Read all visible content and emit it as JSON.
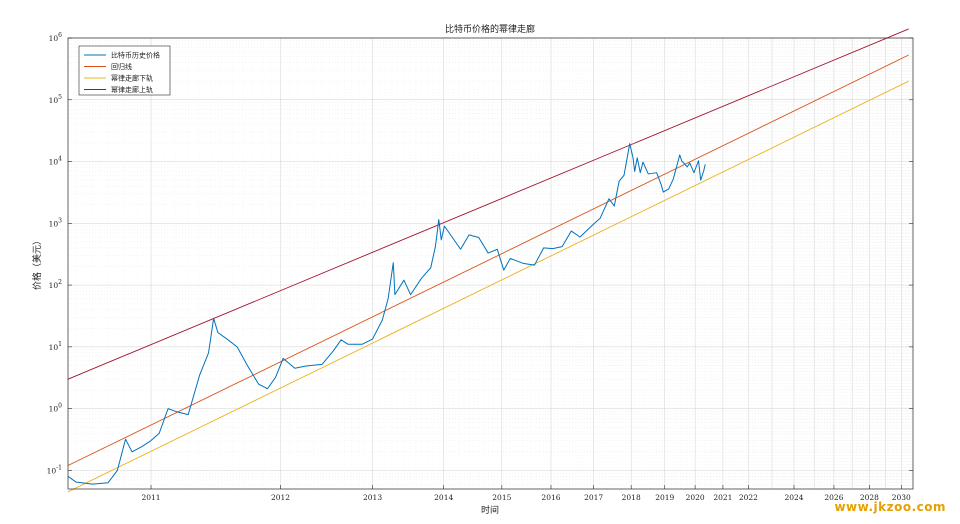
{
  "chart_data": {
    "type": "line",
    "title": "比特币价格的幂律走廊",
    "xlabel": "时间",
    "ylabel": "价格（美元）",
    "yscale": "log",
    "xscale": "log-time",
    "ylim": [
      0.05,
      1000000
    ],
    "y_ticks": [
      {
        "value": 0.1,
        "base": "10",
        "exp": "-1"
      },
      {
        "value": 1,
        "base": "10",
        "exp": "0"
      },
      {
        "value": 10,
        "base": "10",
        "exp": "1"
      },
      {
        "value": 100,
        "base": "10",
        "exp": "2"
      },
      {
        "value": 1000,
        "base": "10",
        "exp": "3"
      },
      {
        "value": 10000,
        "base": "10",
        "exp": "4"
      },
      {
        "value": 100000,
        "base": "10",
        "exp": "5"
      },
      {
        "value": 1000000,
        "base": "10",
        "exp": "6"
      }
    ],
    "x_ticks": [
      "2011",
      "2012",
      "2013",
      "2014",
      "2015",
      "2016",
      "2017",
      "2018",
      "2019",
      "2020",
      "2021",
      "2022",
      "2024",
      "2026",
      "2028",
      "2030"
    ],
    "grid": true,
    "legend_position": "top-left",
    "series": [
      {
        "name": "比特币历史价格",
        "color": "#0072bd",
        "points": [
          [
            "2010-07-18",
            0.08
          ],
          [
            "2010-08-01",
            0.065
          ],
          [
            "2010-09-01",
            0.06
          ],
          [
            "2010-10-01",
            0.063
          ],
          [
            "2010-10-20",
            0.1
          ],
          [
            "2010-11-06",
            0.32
          ],
          [
            "2010-11-20",
            0.2
          ],
          [
            "2010-12-10",
            0.24
          ],
          [
            "2010-12-31",
            0.3
          ],
          [
            "2011-01-20",
            0.4
          ],
          [
            "2011-02-10",
            1.0
          ],
          [
            "2011-03-01",
            0.9
          ],
          [
            "2011-04-01",
            0.8
          ],
          [
            "2011-05-01",
            3.5
          ],
          [
            "2011-05-25",
            8
          ],
          [
            "2011-06-08",
            29
          ],
          [
            "2011-06-20",
            17
          ],
          [
            "2011-07-15",
            13.5
          ],
          [
            "2011-08-15",
            10
          ],
          [
            "2011-09-15",
            5
          ],
          [
            "2011-10-20",
            2.5
          ],
          [
            "2011-11-18",
            2.1
          ],
          [
            "2011-12-15",
            3.2
          ],
          [
            "2012-01-10",
            6.5
          ],
          [
            "2012-02-20",
            4.5
          ],
          [
            "2012-04-01",
            4.9
          ],
          [
            "2012-06-01",
            5.2
          ],
          [
            "2012-07-15",
            8.5
          ],
          [
            "2012-08-17",
            13
          ],
          [
            "2012-09-15",
            11
          ],
          [
            "2012-11-15",
            11
          ],
          [
            "2013-01-01",
            13.4
          ],
          [
            "2013-02-15",
            27
          ],
          [
            "2013-03-15",
            60
          ],
          [
            "2013-04-09",
            230
          ],
          [
            "2013-04-17",
            70
          ],
          [
            "2013-06-01",
            120
          ],
          [
            "2013-07-05",
            70
          ],
          [
            "2013-09-01",
            130
          ],
          [
            "2013-10-20",
            190
          ],
          [
            "2013-11-15",
            420
          ],
          [
            "2013-12-04",
            1150
          ],
          [
            "2013-12-18",
            540
          ],
          [
            "2014-01-05",
            900
          ],
          [
            "2014-02-15",
            620
          ],
          [
            "2014-04-10",
            380
          ],
          [
            "2014-06-01",
            650
          ],
          [
            "2014-08-01",
            590
          ],
          [
            "2014-10-01",
            330
          ],
          [
            "2014-12-01",
            380
          ],
          [
            "2015-01-14",
            175
          ],
          [
            "2015-03-01",
            270
          ],
          [
            "2015-06-01",
            225
          ],
          [
            "2015-08-25",
            210
          ],
          [
            "2015-11-04",
            400
          ],
          [
            "2016-01-15",
            390
          ],
          [
            "2016-04-01",
            420
          ],
          [
            "2016-06-17",
            750
          ],
          [
            "2016-09-01",
            600
          ],
          [
            "2016-12-31",
            970
          ],
          [
            "2017-03-01",
            1200
          ],
          [
            "2017-05-25",
            2500
          ],
          [
            "2017-07-15",
            1900
          ],
          [
            "2017-09-01",
            4800
          ],
          [
            "2017-10-20",
            6000
          ],
          [
            "2017-12-17",
            19500
          ],
          [
            "2018-01-20",
            11500
          ],
          [
            "2018-02-06",
            6900
          ],
          [
            "2018-03-05",
            11500
          ],
          [
            "2018-04-06",
            6600
          ],
          [
            "2018-05-05",
            9800
          ],
          [
            "2018-07-01",
            6300
          ],
          [
            "2018-10-01",
            6600
          ],
          [
            "2018-11-20",
            4300
          ],
          [
            "2018-12-15",
            3200
          ],
          [
            "2019-02-15",
            3600
          ],
          [
            "2019-04-10",
            5200
          ],
          [
            "2019-06-26",
            12800
          ],
          [
            "2019-07-20",
            10200
          ],
          [
            "2019-09-25",
            8200
          ],
          [
            "2019-10-26",
            9500
          ],
          [
            "2019-12-17",
            6600
          ],
          [
            "2020-02-13",
            10300
          ],
          [
            "2020-03-12",
            5000
          ],
          [
            "2020-04-20",
            7100
          ],
          [
            "2020-05-10",
            9000
          ]
        ]
      },
      {
        "name": "回归线",
        "color": "#d95319",
        "line": [
          [
            "2010-07-18",
            0.12
          ],
          [
            "2030-06-30",
            530000
          ]
        ]
      },
      {
        "name": "幂律走廊下轨",
        "color": "#edb120",
        "line": [
          [
            "2010-07-18",
            0.045
          ],
          [
            "2030-06-30",
            200000
          ]
        ]
      },
      {
        "name": "幂律走廊上轨",
        "color": "#a2142f",
        "line": [
          [
            "2010-07-18",
            3.0
          ],
          [
            "2030-06-30",
            1400000
          ]
        ]
      }
    ]
  },
  "watermark": "www.jkzoo.com"
}
